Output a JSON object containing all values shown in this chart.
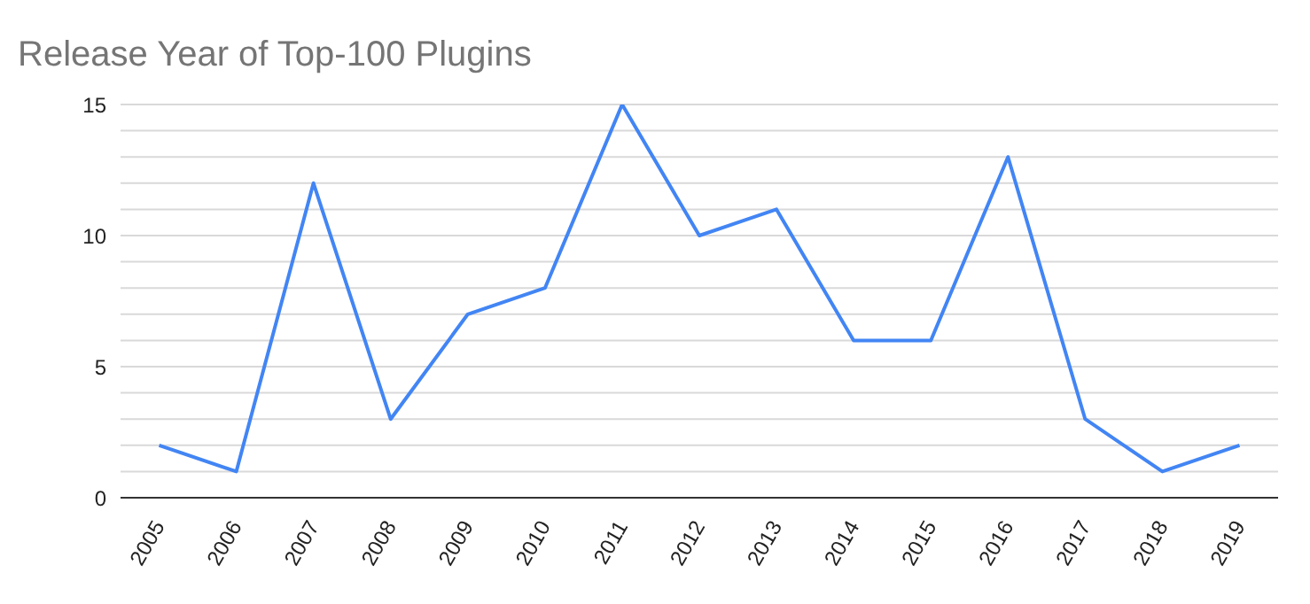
{
  "chart_data": {
    "type": "line",
    "title": "Release Year of Top-100 Plugins",
    "categories": [
      "2005",
      "2006",
      "2007",
      "2008",
      "2009",
      "2010",
      "2011",
      "2012",
      "2013",
      "2014",
      "2015",
      "2016",
      "2017",
      "2018",
      "2019"
    ],
    "series": [
      {
        "color": "#4285f4",
        "values": [
          2,
          1,
          12,
          3,
          7,
          8,
          15,
          10,
          11,
          6,
          6,
          13,
          3,
          1,
          2
        ]
      }
    ],
    "ylim": [
      0,
      15
    ],
    "yticks": [
      0,
      {
        "value": 1,
        "label": null
      },
      {
        "value": 2,
        "label": null
      },
      {
        "value": 3,
        "label": null
      },
      {
        "value": 4,
        "label": null
      },
      5,
      {
        "value": 6,
        "label": null
      },
      {
        "value": 7,
        "label": null
      },
      {
        "value": 8,
        "label": null
      },
      {
        "value": 9,
        "label": null
      },
      10,
      {
        "value": 11,
        "label": null
      },
      {
        "value": 12,
        "label": null
      },
      {
        "value": 13,
        "label": null
      },
      {
        "value": 14,
        "label": null
      },
      15
    ],
    "grid": "y",
    "legend": false,
    "marker": "none",
    "line_style": "solid"
  }
}
